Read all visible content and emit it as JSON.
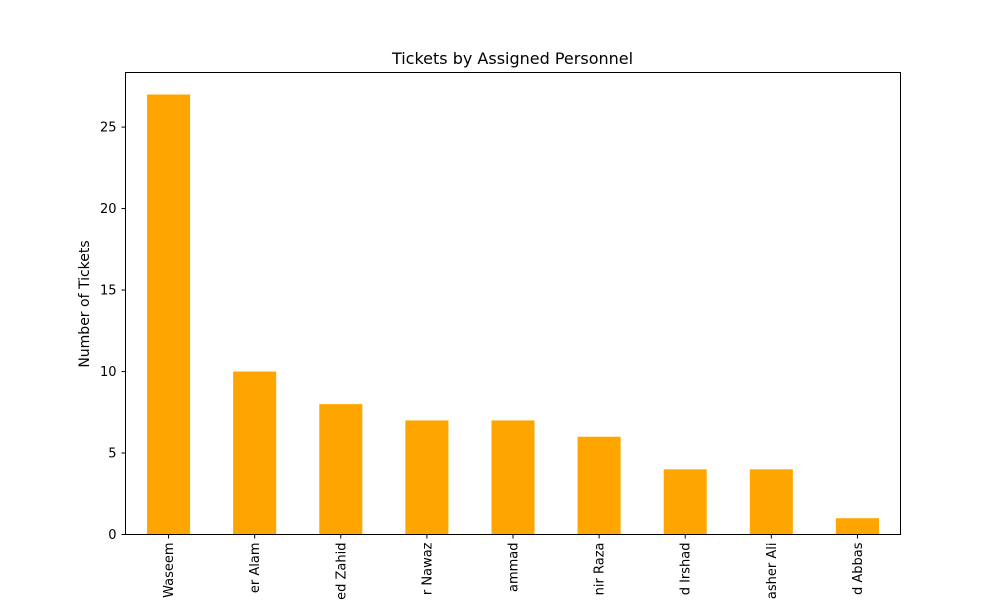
{
  "chart_data": {
    "type": "bar",
    "title": "Tickets by Assigned Personnel",
    "xlabel": "",
    "ylabel": "Number of Tickets",
    "categories": [
      "Waseem",
      "er Alam",
      "ed Zahid",
      "r Nawaz",
      "ammad",
      "nir Raza",
      "d Irshad",
      "asher Ali",
      "d Abbas"
    ],
    "values": [
      27,
      10,
      8,
      7,
      7,
      6,
      4,
      4,
      1
    ],
    "ylim": [
      0,
      28.35
    ],
    "yticks": [
      0,
      5,
      10,
      15,
      20,
      25
    ],
    "bar_color": "#FFA500",
    "grid": false,
    "legend": false
  }
}
